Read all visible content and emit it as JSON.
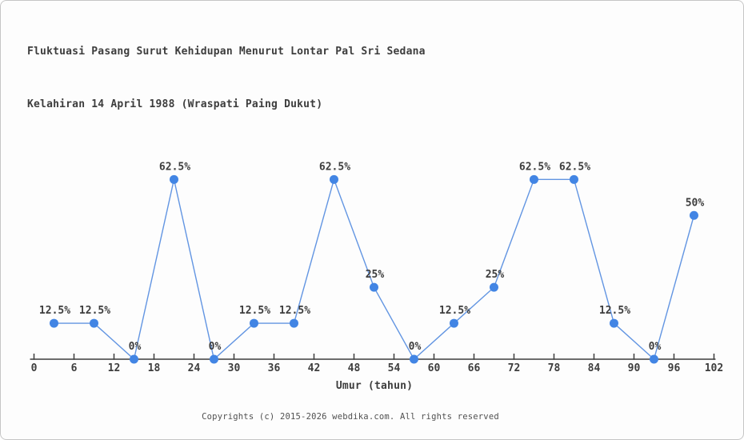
{
  "chart_data": {
    "type": "line",
    "title": "Fluktuasi Pasang Surut Kehidupan Menurut Lontar Pal Sri Sedana",
    "subtitle": "Kelahiran 14 April 1988 (Wraspati Paing Dukut)",
    "xlabel": "Umur (tahun)",
    "ylabel": "",
    "x": [
      3,
      9,
      15,
      21,
      27,
      33,
      39,
      45,
      51,
      57,
      63,
      69,
      75,
      81,
      87,
      93,
      99
    ],
    "values": [
      12.5,
      12.5,
      0,
      62.5,
      0,
      12.5,
      12.5,
      62.5,
      25,
      0,
      12.5,
      25,
      62.5,
      62.5,
      12.5,
      0,
      50
    ],
    "point_labels": [
      "12.5%",
      "12.5%",
      "0%",
      "62.5%",
      "0%",
      "12.5%",
      "12.5%",
      "62.5%",
      "25%",
      "0%",
      "12.5%",
      "25%",
      "62.5%",
      "62.5%",
      "12.5%",
      "0%",
      "50%"
    ],
    "x_ticks": [
      0,
      6,
      12,
      18,
      24,
      30,
      36,
      42,
      48,
      54,
      60,
      66,
      72,
      78,
      84,
      90,
      96,
      102
    ],
    "xlim": [
      0,
      102
    ],
    "ylim": [
      0,
      100
    ],
    "grid": false,
    "legend": "none",
    "colors": {
      "line": "#6295e2",
      "marker": "#4285e4",
      "axis": "#3d3d3d",
      "text": "#3d3d3d"
    }
  },
  "footer": {
    "text": "Copyrights (c) 2015-2026 webdika.com. All rights reserved"
  }
}
